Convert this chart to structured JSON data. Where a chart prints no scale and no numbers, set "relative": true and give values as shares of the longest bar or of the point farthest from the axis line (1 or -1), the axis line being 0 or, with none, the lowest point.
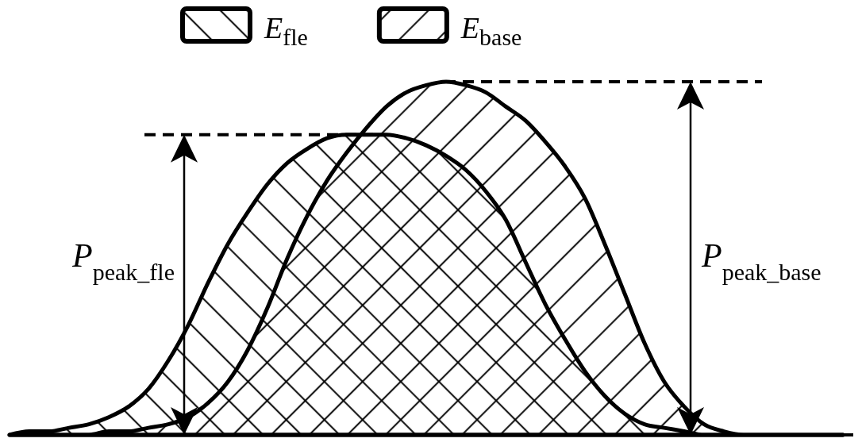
{
  "chart_data": {
    "type": "area",
    "relative": true,
    "legend": "top",
    "categories": [
      null,
      null,
      null,
      null,
      null,
      null,
      null,
      null,
      null,
      null,
      null,
      null,
      null,
      null,
      null,
      null,
      null,
      null,
      null,
      null,
      null,
      null,
      null,
      null,
      null,
      null,
      null,
      null,
      null,
      null,
      null,
      null,
      null,
      null,
      null,
      null,
      null,
      null,
      null,
      null,
      null,
      null,
      null
    ],
    "series": [
      {
        "name": "E$_{fle}$",
        "color": "#000000",
        "values": [
          0,
          0.01,
          0.01,
          0.02,
          0.03,
          0.05,
          0.08,
          0.13,
          0.21,
          0.31,
          0.43,
          0.54,
          0.63,
          0.71,
          0.77,
          0.81,
          0.84,
          0.85,
          0.85,
          0.85,
          0.84,
          0.82,
          0.79,
          0.75,
          0.69,
          0.61,
          0.49,
          0.37,
          0.27,
          0.18,
          0.11,
          0.06,
          0.03,
          0.02,
          0.01,
          0,
          0,
          0,
          0,
          0,
          0,
          0,
          0
        ]
      },
      {
        "name": "E$_{base}$",
        "color": "#000000",
        "values": [
          0,
          0,
          0,
          0,
          0,
          0.01,
          0.01,
          0.02,
          0.03,
          0.05,
          0.09,
          0.15,
          0.24,
          0.36,
          0.5,
          0.62,
          0.72,
          0.8,
          0.87,
          0.93,
          0.97,
          0.99,
          1,
          0.99,
          0.97,
          0.93,
          0.89,
          0.83,
          0.76,
          0.67,
          0.54,
          0.4,
          0.26,
          0.15,
          0.08,
          0.03,
          0.01,
          0,
          0,
          0,
          0,
          0,
          0
        ]
      }
    ],
    "ref_lines": [
      {
        "axis": "y",
        "value": 0.85,
        "line_style": "dashed",
        "color": "#000000"
      },
      {
        "axis": "y",
        "value": 1,
        "line_style": "dashed",
        "color": "#000000"
      }
    ],
    "annotations": [
      "P$_{peak_fle}$",
      "P$_{peak_base}$"
    ]
  }
}
